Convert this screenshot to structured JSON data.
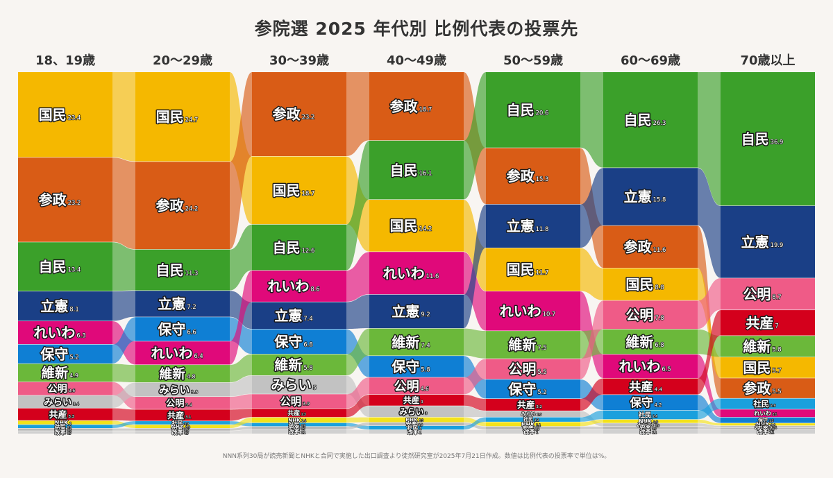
{
  "chart_data": {
    "type": "alluvial",
    "title": "参院選 2025 年代別 比例代表の投票先",
    "footnote": "NNN系列30局が読売新聞とNHKと合同で実施した出口調査より徒然研究室が2025年7月21日作成。数値は比例代表の投票率で単位は%。",
    "unit": "%",
    "colors": {
      "国民": "#f5b800",
      "参政": "#d95c16",
      "自民": "#3ba02a",
      "立憲": "#1a3f86",
      "れいわ": "#e0097a",
      "保守": "#0f7fd4",
      "維新": "#6bb83a",
      "公明": "#ef5b87",
      "みらい": "#c2c2c2",
      "共産": "#d4001c",
      "NHK": "#f3e21a",
      "社民": "#1aa0dd",
      "安楽": "#b8b8b8",
      "改革": "#d0d0d0"
    },
    "columns": [
      {
        "label": "18、19歳",
        "segments": [
          {
            "party": "国民",
            "value": 23.4
          },
          {
            "party": "参政",
            "value": 23.2
          },
          {
            "party": "自民",
            "value": 13.4
          },
          {
            "party": "立憲",
            "value": 8.1
          },
          {
            "party": "れいわ",
            "value": 6.3
          },
          {
            "party": "保守",
            "value": 5.2
          },
          {
            "party": "維新",
            "value": 4.9
          },
          {
            "party": "公明",
            "value": 3.6
          },
          {
            "party": "みらい",
            "value": 3.4
          },
          {
            "party": "共産",
            "value": 3.3
          },
          {
            "party": "NHK",
            "value": 1.0
          },
          {
            "party": "社民",
            "value": 0.9
          },
          {
            "party": "安楽",
            "value": 0.6
          },
          {
            "party": "改革",
            "value": 0.7
          }
        ]
      },
      {
        "label": "20〜29歳",
        "segments": [
          {
            "party": "国民",
            "value": 24.7
          },
          {
            "party": "参政",
            "value": 24.2
          },
          {
            "party": "自民",
            "value": 11.3
          },
          {
            "party": "立憲",
            "value": 7.2
          },
          {
            "party": "保守",
            "value": 6.6
          },
          {
            "party": "れいわ",
            "value": 6.4
          },
          {
            "party": "維新",
            "value": 4.8
          },
          {
            "party": "みらい",
            "value": 3.8
          },
          {
            "party": "公明",
            "value": 3.4
          },
          {
            "party": "共産",
            "value": 3.1
          },
          {
            "party": "社民",
            "value": 0.9
          },
          {
            "party": "NHK",
            "value": 0.9
          },
          {
            "party": "安楽",
            "value": 0.6
          },
          {
            "party": "改革",
            "value": 0.7
          }
        ]
      },
      {
        "label": "30〜39歳",
        "segments": [
          {
            "party": "参政",
            "value": 23.2
          },
          {
            "party": "国民",
            "value": 18.7
          },
          {
            "party": "自民",
            "value": 12.6
          },
          {
            "party": "れいわ",
            "value": 8.6
          },
          {
            "party": "立憲",
            "value": 7.4
          },
          {
            "party": "保守",
            "value": 6.8
          },
          {
            "party": "維新",
            "value": 5.8
          },
          {
            "party": "みらい",
            "value": 5
          },
          {
            "party": "公明",
            "value": 3.9
          },
          {
            "party": "共産",
            "value": 2.3
          },
          {
            "party": "NHK",
            "value": 1.4
          },
          {
            "party": "社民",
            "value": 0.9
          },
          {
            "party": "安楽",
            "value": 0.7
          },
          {
            "party": "改革",
            "value": 1.1
          }
        ]
      },
      {
        "label": "40〜49歳",
        "segments": [
          {
            "party": "参政",
            "value": 18.7
          },
          {
            "party": "自民",
            "value": 16.1
          },
          {
            "party": "国民",
            "value": 14.2
          },
          {
            "party": "れいわ",
            "value": 11.6
          },
          {
            "party": "立憲",
            "value": 9.2
          },
          {
            "party": "維新",
            "value": 7.4
          },
          {
            "party": "保守",
            "value": 5.8
          },
          {
            "party": "公明",
            "value": 4.6
          },
          {
            "party": "共産",
            "value": 3
          },
          {
            "party": "みらい",
            "value": 3
          },
          {
            "party": "NHK",
            "value": 1.3
          },
          {
            "party": "安楽",
            "value": 0.8
          },
          {
            "party": "社民",
            "value": 1.0
          },
          {
            "party": "改革",
            "value": 1.0
          }
        ]
      },
      {
        "label": "50〜59歳",
        "segments": [
          {
            "party": "自民",
            "value": 20.6
          },
          {
            "party": "参政",
            "value": 15.3
          },
          {
            "party": "立憲",
            "value": 11.8
          },
          {
            "party": "国民",
            "value": 11.7
          },
          {
            "party": "れいわ",
            "value": 10.7
          },
          {
            "party": "維新",
            "value": 7.5
          },
          {
            "party": "公明",
            "value": 5.5
          },
          {
            "party": "保守",
            "value": 5.2
          },
          {
            "party": "共産",
            "value": 3.2
          },
          {
            "party": "みらい",
            "value": 1.6
          },
          {
            "party": "社民",
            "value": 1.2
          },
          {
            "party": "NHK",
            "value": 1.1
          },
          {
            "party": "安楽",
            "value": 0.8
          },
          {
            "party": "改革",
            "value": 1.0
          }
        ]
      },
      {
        "label": "60〜69歳",
        "segments": [
          {
            "party": "自民",
            "value": 26.3
          },
          {
            "party": "立憲",
            "value": 15.8
          },
          {
            "party": "参政",
            "value": 11.6
          },
          {
            "party": "国民",
            "value": 8.8
          },
          {
            "party": "公明",
            "value": 7.8
          },
          {
            "party": "維新",
            "value": 6.8
          },
          {
            "party": "れいわ",
            "value": 6.5
          },
          {
            "party": "共産",
            "value": 4.4
          },
          {
            "party": "保守",
            "value": 4.2
          },
          {
            "party": "社民",
            "value": 2.4
          },
          {
            "party": "NHK",
            "value": 0.9
          },
          {
            "party": "みらい",
            "value": 0.8
          },
          {
            "party": "安楽",
            "value": 0.7
          },
          {
            "party": "改革",
            "value": 1.1
          }
        ]
      },
      {
        "label": "70歳以上",
        "segments": [
          {
            "party": "自民",
            "value": 36.9
          },
          {
            "party": "立憲",
            "value": 19.9
          },
          {
            "party": "公明",
            "value": 8.7
          },
          {
            "party": "共産",
            "value": 7
          },
          {
            "party": "維新",
            "value": 5.8
          },
          {
            "party": "国民",
            "value": 5.7
          },
          {
            "party": "参政",
            "value": 5.5
          },
          {
            "party": "社民",
            "value": 2.9
          },
          {
            "party": "れいわ",
            "value": 2.1
          },
          {
            "party": "保守",
            "value": 1.5
          },
          {
            "party": "NHK",
            "value": 0.6
          },
          {
            "party": "みらい",
            "value": 0.4
          },
          {
            "party": "安楽",
            "value": 0.4
          },
          {
            "party": "改革",
            "value": 1.1
          }
        ]
      }
    ]
  }
}
